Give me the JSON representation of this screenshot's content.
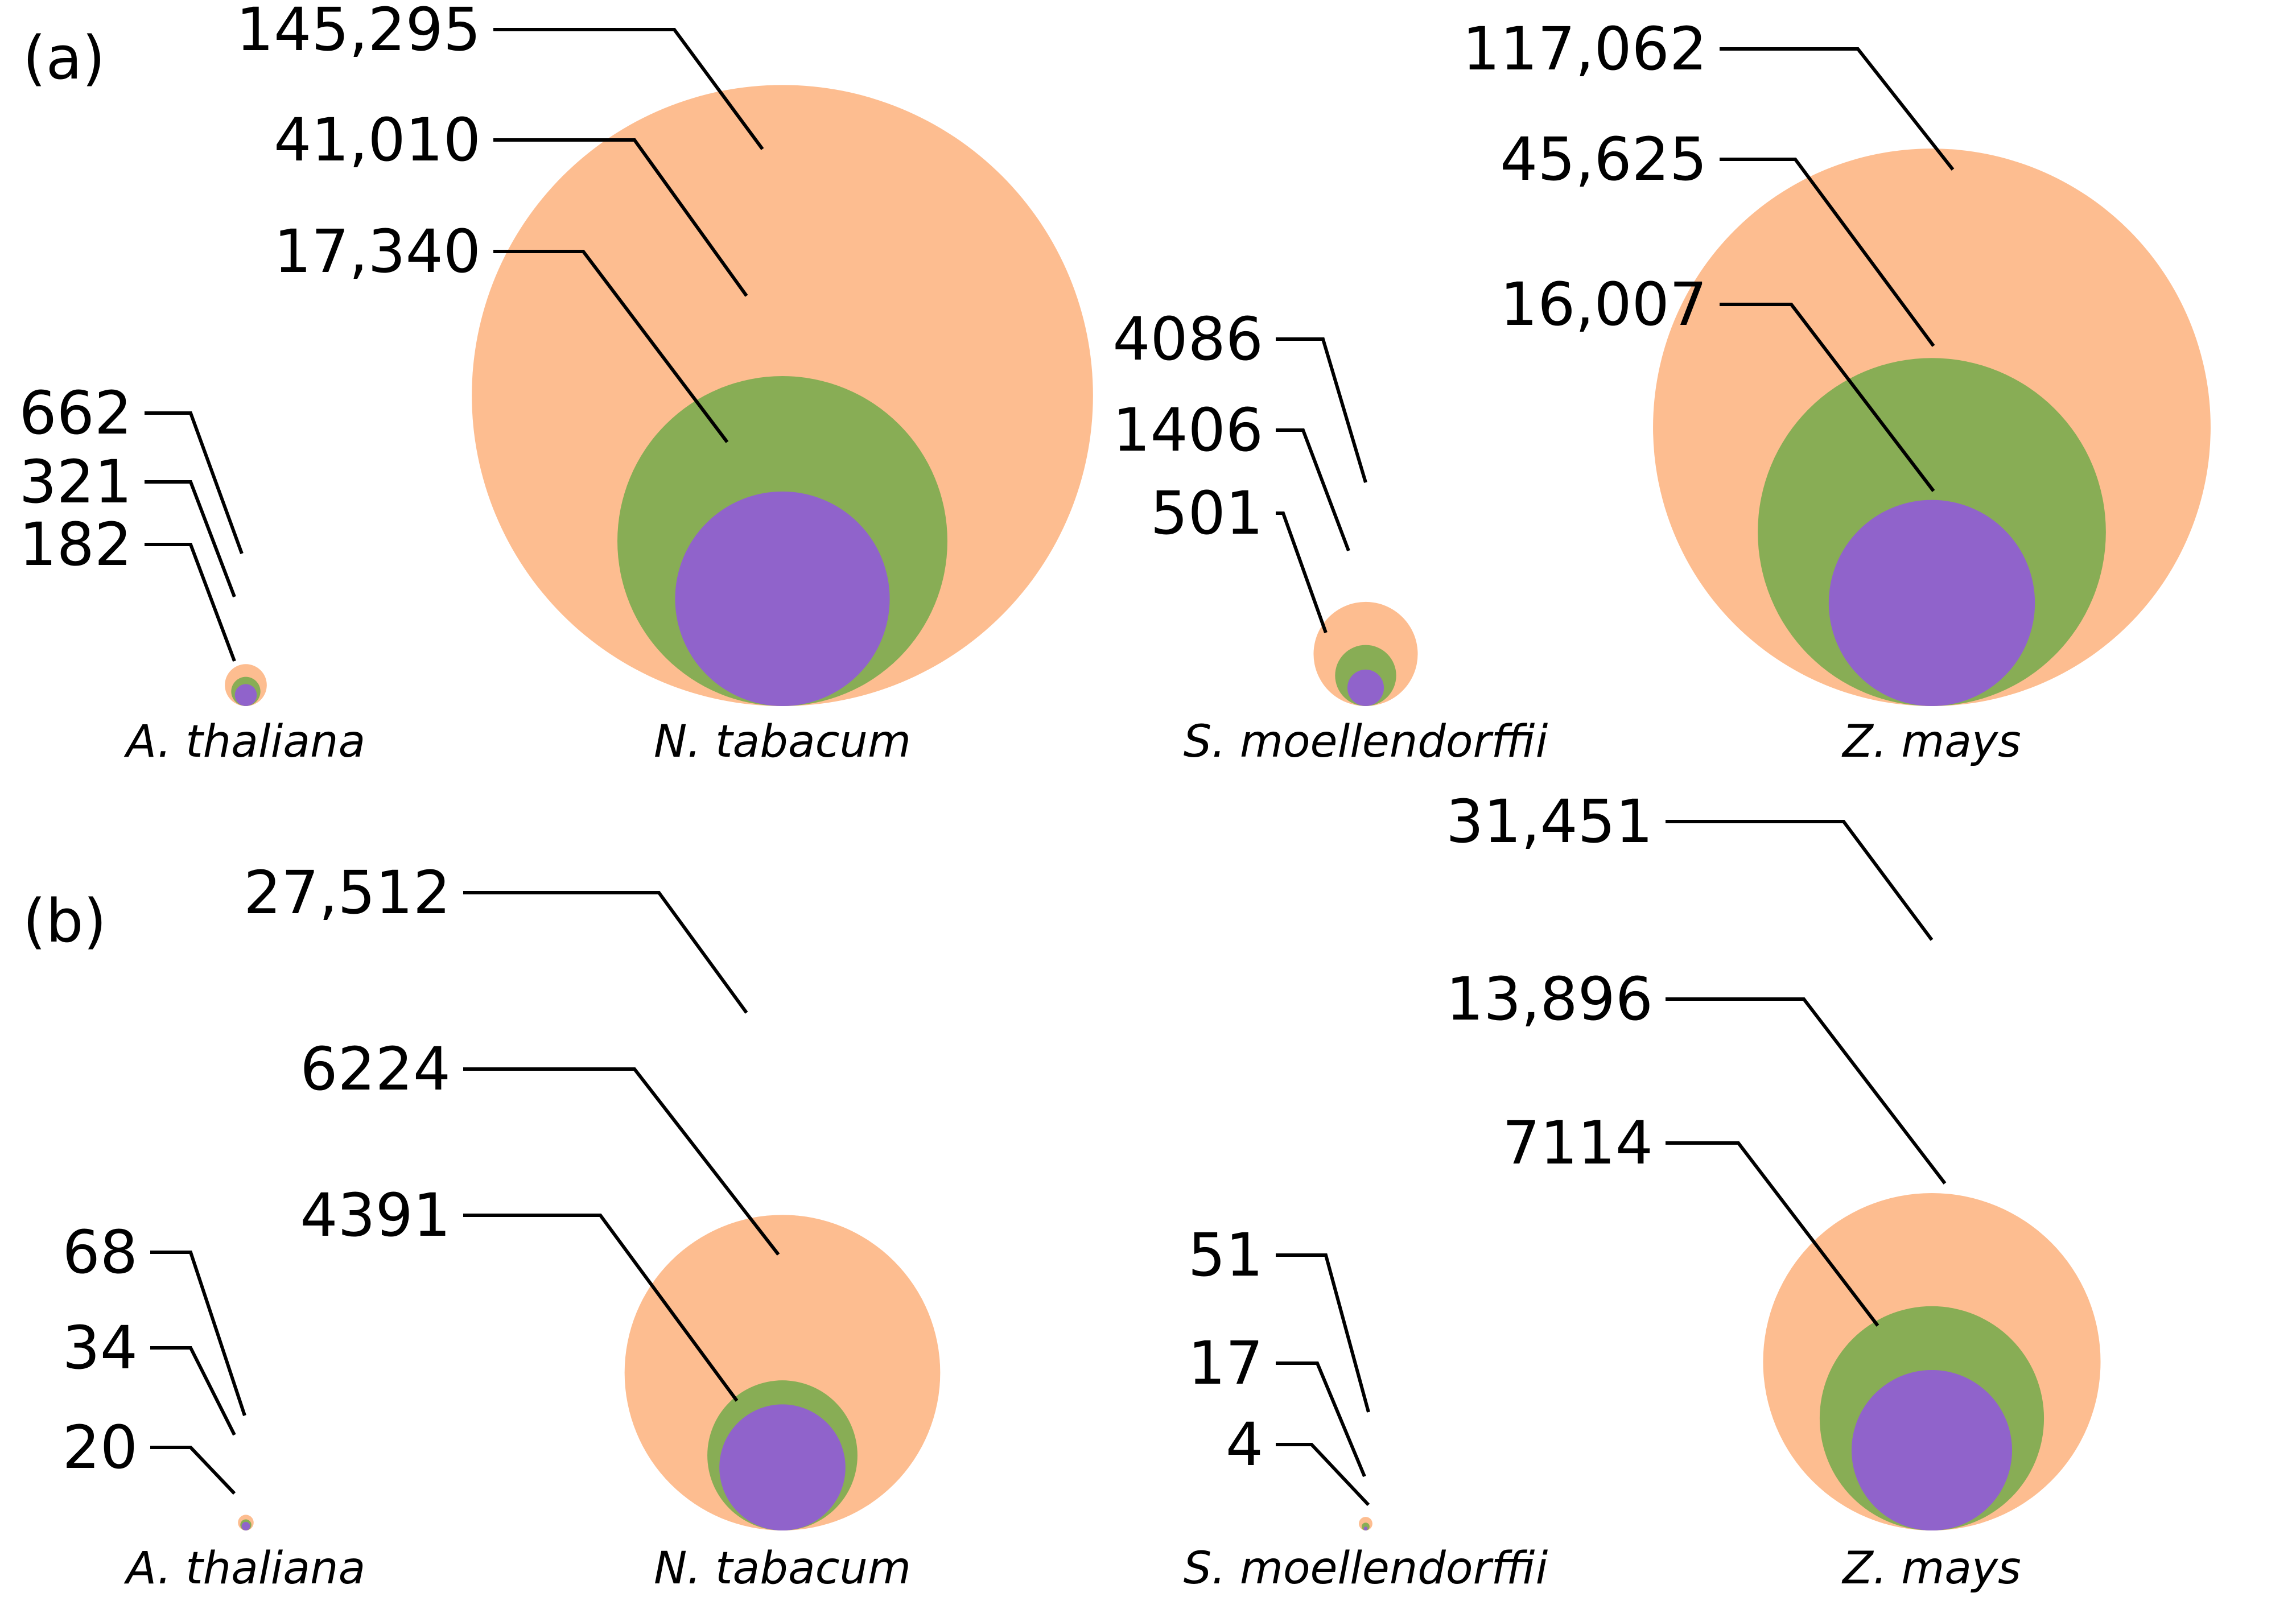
{
  "colors": {
    "outer": "#fdbd90",
    "middle": "#88ad55",
    "inner": "#9063cb"
  },
  "chart_data": [
    {
      "type": "nested-circle",
      "panel": "(a)",
      "series_names": [
        "outer",
        "middle",
        "inner"
      ],
      "groups": [
        {
          "species": "A. thaliana",
          "values": [
            662,
            321,
            182
          ],
          "labels": [
            "662",
            "321",
            "182"
          ]
        },
        {
          "species": "N. tabacum",
          "values": [
            145295,
            41010,
            17340
          ],
          "labels": [
            "145,295",
            "41,010",
            "17,340"
          ]
        },
        {
          "species": "S. moellendorffii",
          "values": [
            4086,
            1406,
            501
          ],
          "labels": [
            "4086",
            "1406",
            "501"
          ]
        },
        {
          "species": "Z. mays",
          "values": [
            117062,
            45625,
            16007
          ],
          "labels": [
            "117,062",
            "45,625",
            "16,007"
          ]
        }
      ]
    },
    {
      "type": "nested-circle",
      "panel": "(b)",
      "series_names": [
        "outer",
        "middle",
        "inner"
      ],
      "groups": [
        {
          "species": "A. thaliana",
          "values": [
            68,
            34,
            20
          ],
          "labels": [
            "68",
            "34",
            "20"
          ]
        },
        {
          "species": "N. tabacum",
          "values": [
            27512,
            6224,
            4391
          ],
          "labels": [
            "27,512",
            "6224",
            "4391"
          ]
        },
        {
          "species": "S. moellendorffii",
          "values": [
            51,
            17,
            4
          ],
          "labels": [
            "51",
            "17",
            "4"
          ]
        },
        {
          "species": "Z. mays",
          "values": [
            31451,
            13896,
            7114
          ],
          "labels": [
            "31,451",
            "13,896",
            "7114"
          ]
        }
      ]
    }
  ]
}
